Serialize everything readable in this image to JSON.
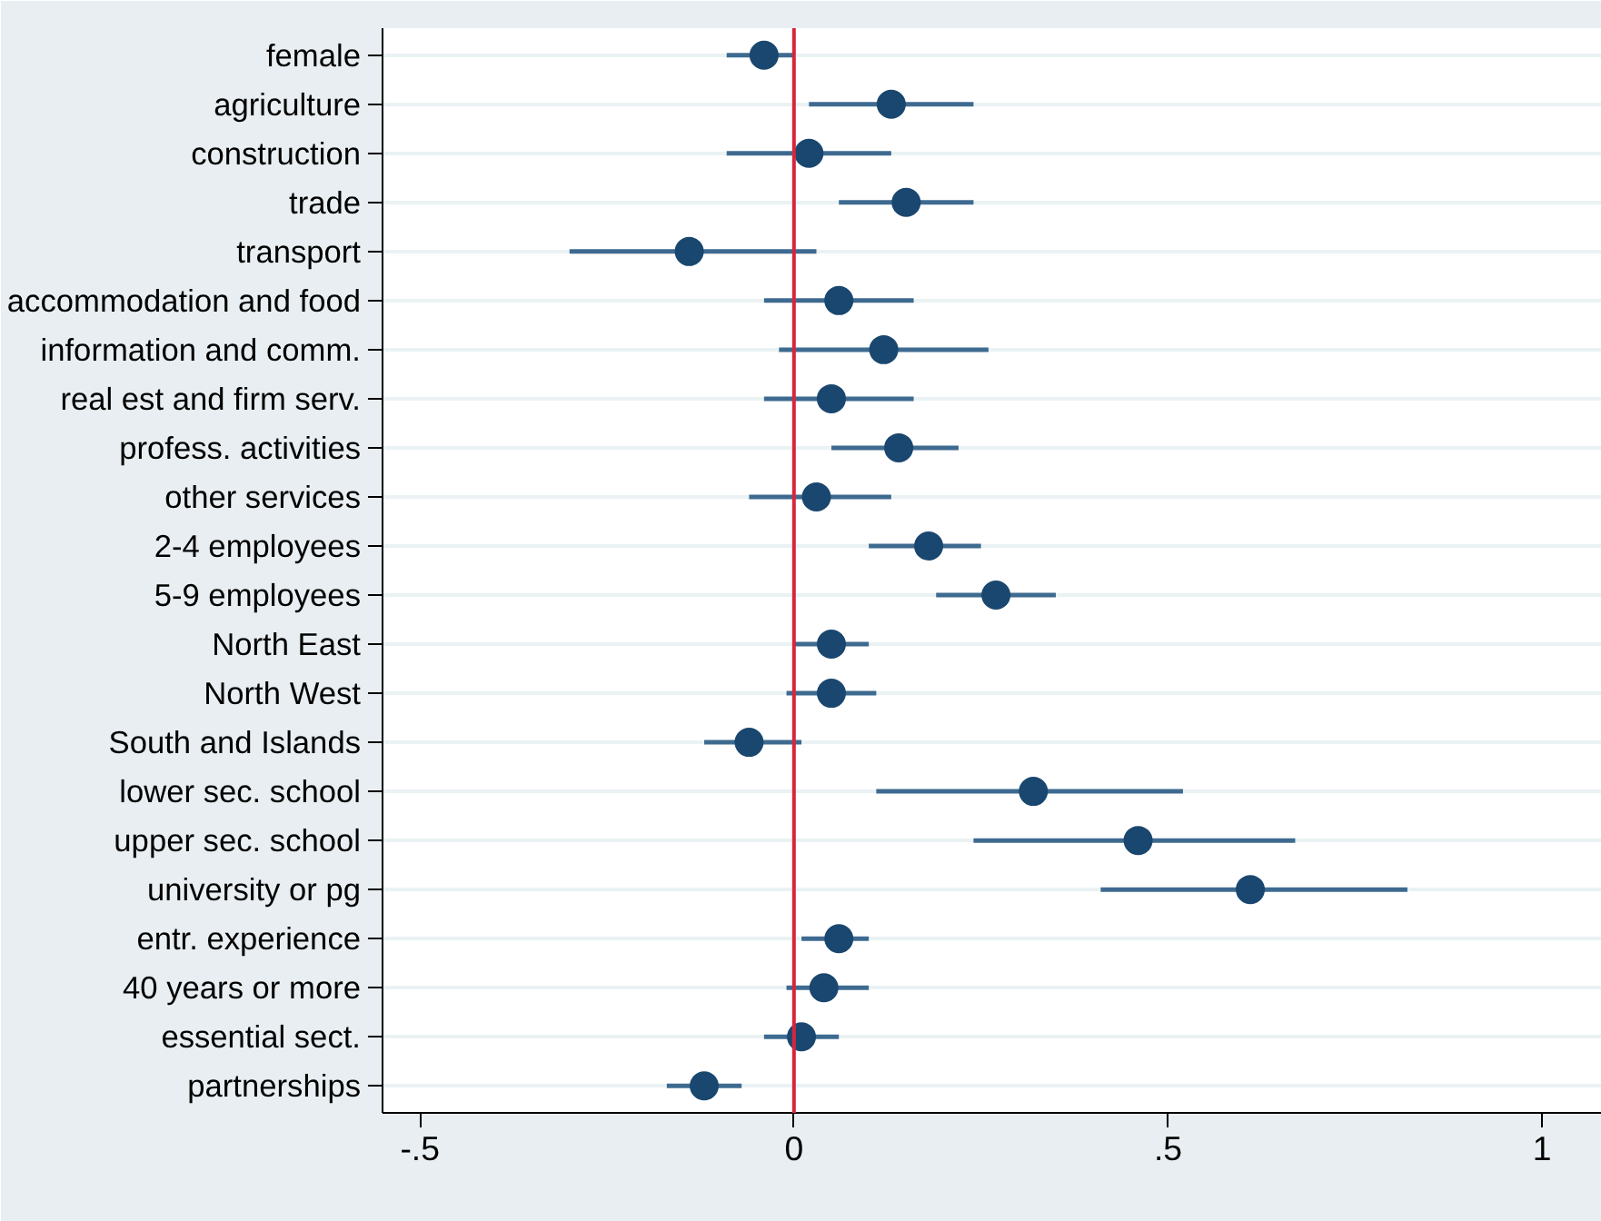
{
  "chart_data": {
    "type": "scatter",
    "orientation": "horizontal",
    "categories": [
      "female",
      "agriculture",
      "construction",
      "trade",
      "transport",
      "accommodation and food",
      "information and comm.",
      "real est and firm serv.",
      "profess. activities",
      "other services",
      "2-4 employees",
      "5-9 employees",
      "North East",
      "North West",
      "South and Islands",
      "lower sec. school",
      "upper sec. school",
      "university or pg",
      "entr. experience",
      "40 years or more",
      "essential sect.",
      "partnerships"
    ],
    "series": [
      {
        "color": "#1a476f",
        "values": [
          -0.04,
          0.13,
          0.02,
          0.15,
          -0.14,
          0.06,
          0.12,
          0.05,
          0.14,
          0.03,
          0.18,
          0.27,
          0.05,
          0.05,
          -0.06,
          0.32,
          0.46,
          0.61,
          0.06,
          0.04,
          0.01,
          -0.12
        ],
        "errors": [
          [
            -0.09,
            0.0
          ],
          [
            0.02,
            0.24
          ],
          [
            -0.09,
            0.13
          ],
          [
            0.06,
            0.24
          ],
          [
            -0.3,
            0.03
          ],
          [
            -0.04,
            0.16
          ],
          [
            -0.02,
            0.26
          ],
          [
            -0.04,
            0.16
          ],
          [
            0.05,
            0.22
          ],
          [
            -0.06,
            0.13
          ],
          [
            0.1,
            0.25
          ],
          [
            0.19,
            0.35
          ],
          [
            0.0,
            0.1
          ],
          [
            -0.01,
            0.11
          ],
          [
            -0.12,
            0.01
          ],
          [
            0.11,
            0.52
          ],
          [
            0.24,
            0.67
          ],
          [
            0.41,
            0.82
          ],
          [
            0.01,
            0.1
          ],
          [
            -0.01,
            0.1
          ],
          [
            -0.04,
            0.06
          ],
          [
            -0.17,
            -0.07
          ]
        ]
      }
    ],
    "xlim": [
      -0.55,
      1.08
    ],
    "xticks": [
      {
        "value": -0.5,
        "label": "-.5"
      },
      0,
      {
        "value": 0.5,
        "label": ".5"
      },
      1
    ],
    "ref_lines": [
      {
        "axis": "x",
        "value": 0,
        "color": "#d7263d"
      }
    ],
    "grid": "y",
    "marker": "circle"
  }
}
